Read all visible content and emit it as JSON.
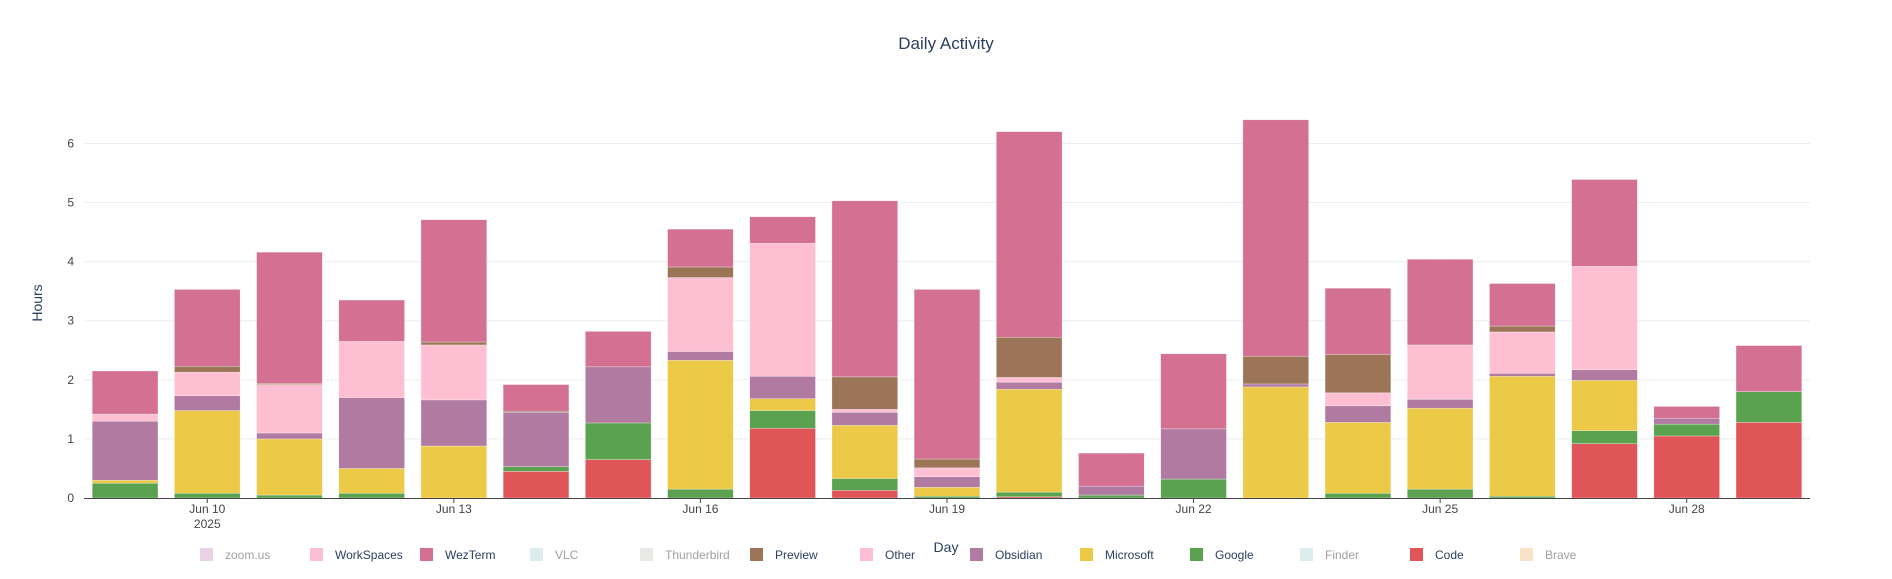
{
  "chart_data": {
    "type": "bar",
    "stacked": true,
    "title": "Daily Activity",
    "xlabel": "Day",
    "ylabel": "Hours",
    "ylim": [
      0,
      6.6
    ],
    "yticks": [
      0,
      1,
      2,
      3,
      4,
      5,
      6
    ],
    "grid": true,
    "legend_position": "bottom",
    "x_tick_labels": [
      {
        "index": 1,
        "label": "Jun 10",
        "sub": "2025"
      },
      {
        "index": 4,
        "label": "Jun 13"
      },
      {
        "index": 7,
        "label": "Jun 16"
      },
      {
        "index": 10,
        "label": "Jun 19"
      },
      {
        "index": 13,
        "label": "Jun 22"
      },
      {
        "index": 16,
        "label": "Jun 25"
      },
      {
        "index": 19,
        "label": "Jun 28"
      }
    ],
    "categories": [
      "2025-06-09",
      "2025-06-10",
      "2025-06-11",
      "2025-06-12",
      "2025-06-13",
      "2025-06-14",
      "2025-06-15",
      "2025-06-16",
      "2025-06-17",
      "2025-06-18",
      "2025-06-19",
      "2025-06-20",
      "2025-06-21",
      "2025-06-22",
      "2025-06-23",
      "2025-06-24",
      "2025-06-25",
      "2025-06-26",
      "2025-06-27",
      "2025-06-28",
      "2025-06-29"
    ],
    "series": [
      {
        "name": "Code",
        "color": "#e05558",
        "legend_visible": true,
        "values": [
          0,
          0,
          0,
          0,
          0,
          0.45,
          0.65,
          0,
          1.18,
          0.13,
          0,
          0.02,
          0,
          0,
          0,
          0,
          0,
          0,
          0.92,
          1.05,
          1.28
        ]
      },
      {
        "name": "Google",
        "color": "#5aa150",
        "legend_visible": true,
        "values": [
          0.25,
          0.08,
          0.05,
          0.08,
          0,
          0.08,
          0.62,
          0.15,
          0.3,
          0.2,
          0.03,
          0.08,
          0.05,
          0.32,
          0,
          0.08,
          0.15,
          0.03,
          0.22,
          0.2,
          0.52
        ]
      },
      {
        "name": "Microsoft",
        "color": "#ecc946",
        "legend_visible": true,
        "values": [
          0.05,
          1.4,
          0.95,
          0.42,
          0.88,
          0,
          0,
          2.18,
          0.2,
          0.9,
          0.15,
          1.74,
          0,
          0,
          1.88,
          1.2,
          1.37,
          2.03,
          0.85,
          0,
          0
        ]
      },
      {
        "name": "Obsidian",
        "color": "#b07aa1",
        "legend_visible": true,
        "values": [
          1.0,
          0.25,
          0.1,
          1.2,
          0.78,
          0.92,
          0.95,
          0.15,
          0.38,
          0.22,
          0.18,
          0.12,
          0.15,
          0.85,
          0.05,
          0.28,
          0.15,
          0.05,
          0.18,
          0.1,
          0
        ]
      },
      {
        "name": "Other",
        "color": "#ffbfd3",
        "legend_visible": true,
        "values": [
          0.12,
          0.4,
          0.82,
          0.95,
          0.93,
          0,
          0,
          1.25,
          2.25,
          0.05,
          0.15,
          0.08,
          0,
          0,
          0,
          0.22,
          0.92,
          0.7,
          1.75,
          0,
          0
        ]
      },
      {
        "name": "Preview",
        "color": "#9c7559",
        "legend_visible": true,
        "values": [
          0,
          0.1,
          0.02,
          0,
          0.05,
          0.02,
          0,
          0.18,
          0,
          0.55,
          0.15,
          0.68,
          0,
          0,
          0.47,
          0.65,
          0,
          0.1,
          0,
          0,
          0
        ]
      },
      {
        "name": "Thunderbird",
        "color": "#d7d3cf",
        "legend_visible": false,
        "values": [
          0,
          0,
          0,
          0,
          0,
          0,
          0,
          0,
          0,
          0,
          0,
          0,
          0,
          0,
          0,
          0,
          0,
          0,
          0,
          0,
          0
        ]
      },
      {
        "name": "VLC",
        "color": "#b5dbd9",
        "legend_visible": false,
        "values": [
          0,
          0,
          0,
          0,
          0,
          0,
          0,
          0,
          0,
          0,
          0,
          0,
          0,
          0,
          0,
          0,
          0,
          0,
          0,
          0,
          0
        ]
      },
      {
        "name": "WezTerm",
        "color": "#d47193",
        "legend_visible": true,
        "values": [
          0.73,
          1.3,
          2.22,
          0.7,
          2.07,
          0.45,
          0.6,
          0.64,
          0.45,
          2.98,
          2.87,
          3.48,
          0.56,
          1.27,
          4.0,
          1.12,
          1.45,
          0.72,
          1.47,
          0.2,
          0.78
        ]
      },
      {
        "name": "WorkSpaces",
        "color": "#fabfd2",
        "legend_visible": true,
        "values": [
          0,
          0,
          0,
          0,
          0,
          0,
          0,
          0,
          0,
          0,
          0,
          0,
          0,
          0,
          0,
          0,
          0,
          0,
          0,
          0,
          0
        ]
      },
      {
        "name": "zoom.us",
        "color": "#d4a6c8",
        "legend_visible": false,
        "values": [
          0,
          0,
          0,
          0,
          0,
          0,
          0,
          0,
          0,
          0,
          0,
          0,
          0,
          0,
          0,
          0,
          0,
          0,
          0,
          0,
          0
        ]
      },
      {
        "name": "Finder",
        "color": "#b5dbd9",
        "legend_visible": false,
        "values": [
          0,
          0,
          0,
          0,
          0,
          0,
          0,
          0,
          0,
          0,
          0,
          0,
          0,
          0,
          0,
          0,
          0,
          0,
          0,
          0,
          0
        ]
      },
      {
        "name": "Brave",
        "color": "#f7c491",
        "legend_visible": false,
        "values": [
          0,
          0,
          0,
          0,
          0,
          0,
          0,
          0,
          0,
          0,
          0,
          0,
          0,
          0,
          0,
          0,
          0,
          0,
          0,
          0,
          0
        ]
      }
    ],
    "legend_order": [
      "zoom.us",
      "WorkSpaces",
      "WezTerm",
      "VLC",
      "Thunderbird",
      "Preview",
      "Other",
      "Obsidian",
      "Microsoft",
      "Google",
      "Finder",
      "Code",
      "Brave"
    ]
  }
}
